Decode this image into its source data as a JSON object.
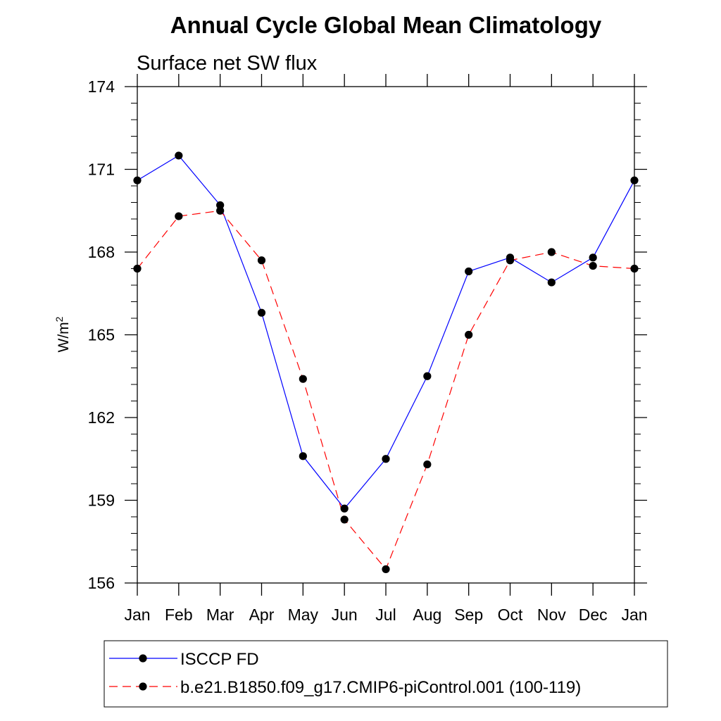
{
  "chart_data": {
    "type": "line",
    "title": "Annual Cycle Global Mean Climatology",
    "subtitle": "Surface net SW flux",
    "xlabel": "",
    "ylabel_base": "W/m",
    "ylabel_sup": "2",
    "categories": [
      "Jan",
      "Feb",
      "Mar",
      "Apr",
      "May",
      "Jun",
      "Jul",
      "Aug",
      "Sep",
      "Oct",
      "Nov",
      "Dec",
      "Jan"
    ],
    "ylim": [
      156,
      174
    ],
    "yticks": [
      156,
      159,
      162,
      165,
      168,
      171,
      174
    ],
    "yticks_minor_step": 0.6,
    "grid": false,
    "legend_position": "bottom",
    "series": [
      {
        "name": "ISCCP FD",
        "color": "#0000ff",
        "line_style": "solid",
        "marker": "filled-circle",
        "marker_color": "#000000",
        "values": [
          170.6,
          171.5,
          169.7,
          165.8,
          160.6,
          158.7,
          160.5,
          163.5,
          167.3,
          167.8,
          166.9,
          167.8,
          170.6
        ]
      },
      {
        "name": "b.e21.B1850.f09_g17.CMIP6-piControl.001 (100-119)",
        "color": "#ff0000",
        "line_style": "dashed",
        "marker": "filled-circle",
        "marker_color": "#000000",
        "values": [
          167.4,
          169.3,
          169.5,
          167.7,
          163.4,
          158.3,
          156.5,
          160.3,
          165.0,
          167.7,
          168.0,
          167.5,
          167.4
        ]
      }
    ]
  }
}
